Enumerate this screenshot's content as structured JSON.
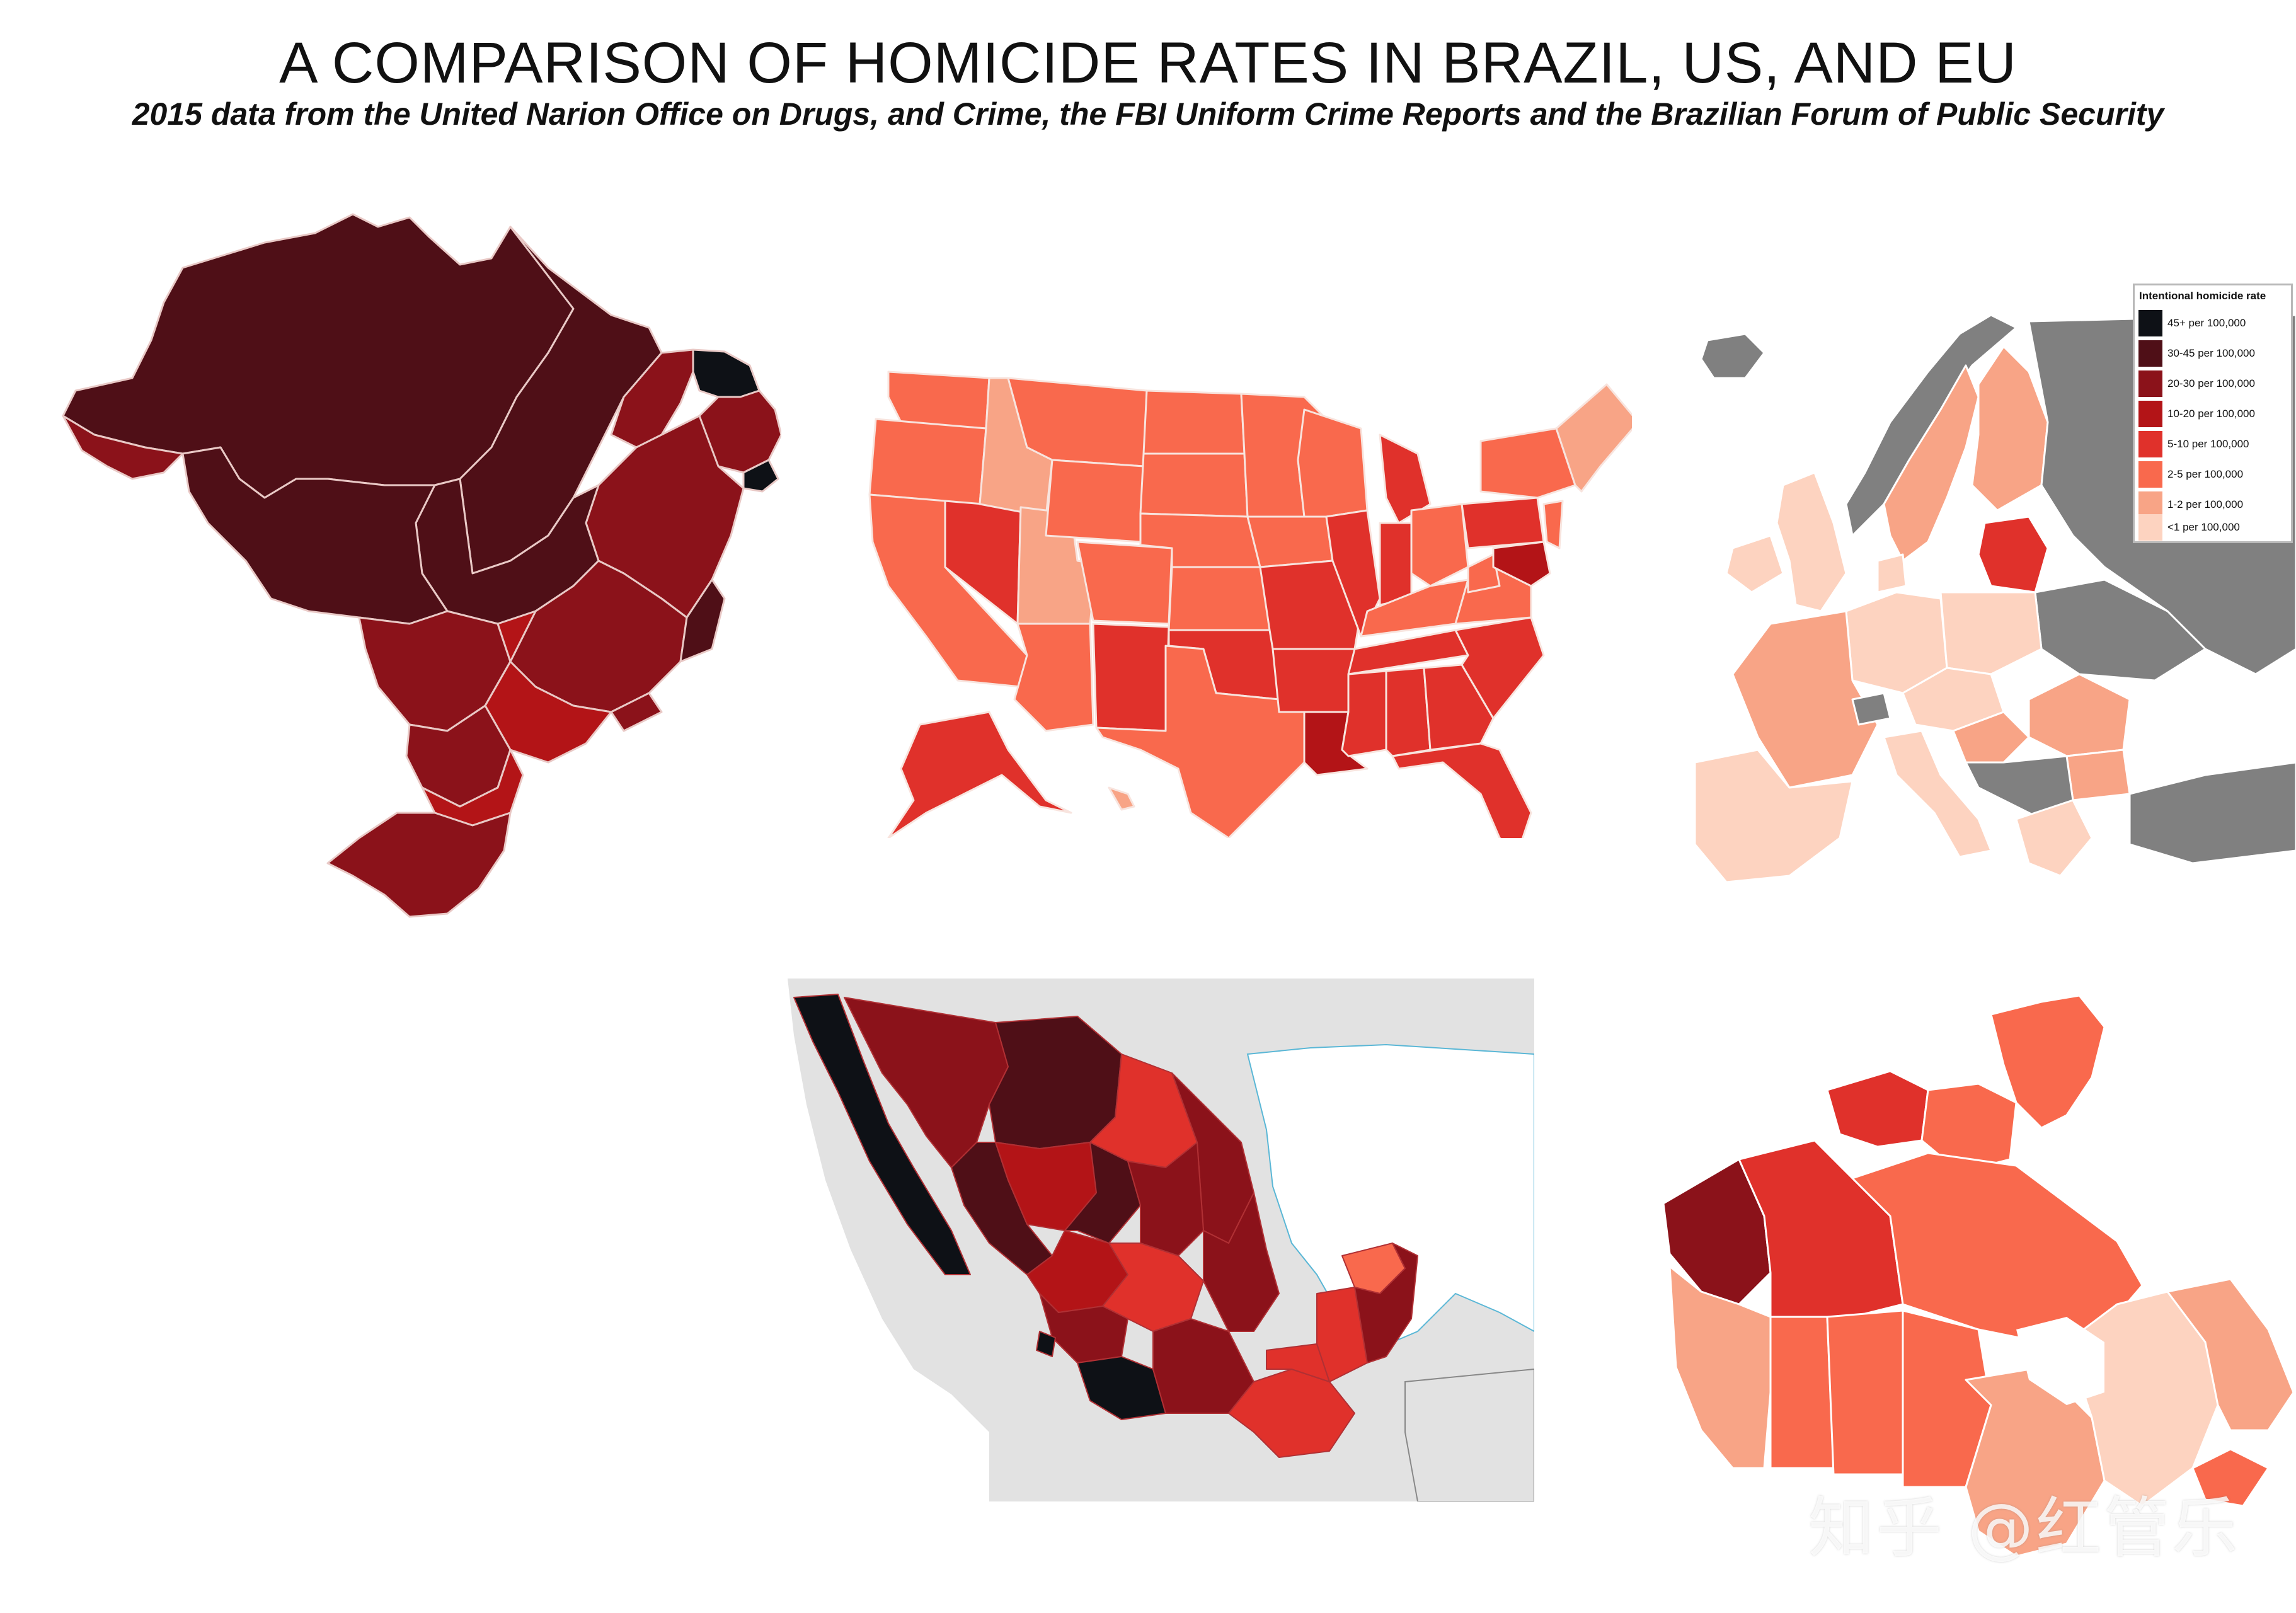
{
  "title": "A COMPARISON OF HOMICIDE RATES IN BRAZIL, US, AND EU",
  "subtitle": "2015 data from the United Narion Office on Drugs, and Crime, the FBI Uniform Crime Reports and the Brazilian Forum of Public Security",
  "legend": {
    "title": "Intentional homicide rate",
    "items": [
      {
        "label": "45+ per 100,000",
        "color": "#0e1116"
      },
      {
        "label": "30-45 per 100,000",
        "color": "#4f0f17"
      },
      {
        "label": "20-30 per 100,000",
        "color": "#8b121a"
      },
      {
        "label": "10-20 per 100,000",
        "color": "#b31417"
      },
      {
        "label": "5-10 per 100,000",
        "color": "#e0312b"
      },
      {
        "label": "2-5 per 100,000",
        "color": "#f9694d"
      },
      {
        "label": "1-2 per 100,000",
        "color": "#f8a486"
      },
      {
        "label": "<1 per 100,000",
        "color": "#fdd3c0"
      }
    ]
  },
  "maps": [
    {
      "name": "Brazil"
    },
    {
      "name": "United States"
    },
    {
      "name": "Europe"
    },
    {
      "name": "Mexico"
    },
    {
      "name": "Canada"
    }
  ],
  "colors": {
    "no_data": "#808080",
    "background_land": "#e2e2e2",
    "border": "#f3e3df"
  },
  "watermark": "知乎 @红管乐"
}
